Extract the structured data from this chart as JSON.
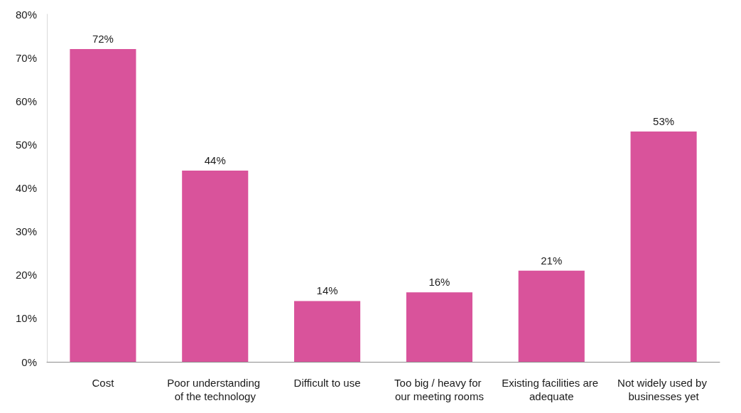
{
  "chart_data": {
    "type": "bar",
    "categories": [
      "Cost",
      "Poor understanding of the technology",
      "Difficult to use",
      "Too big / heavy for our meeting rooms",
      "Existing facilities are adequate",
      "Not widely used by businesses yet"
    ],
    "values": [
      72,
      44,
      14,
      16,
      21,
      53
    ],
    "color": "#d9539b",
    "value_labels": [
      "72%",
      "44%",
      "14%",
      "16%",
      "21%",
      "53%"
    ],
    "ylim": [
      0,
      80
    ],
    "yticks": [
      {
        "value": 0,
        "label": "0%"
      },
      {
        "value": 10,
        "label": "10%"
      },
      {
        "value": 20,
        "label": "20%"
      },
      {
        "value": 30,
        "label": "30%"
      },
      {
        "value": 40,
        "label": "40%"
      },
      {
        "value": 50,
        "label": "50%"
      },
      {
        "value": 60,
        "label": "60%"
      },
      {
        "value": 70,
        "label": "70%"
      },
      {
        "value": 80,
        "label": "80%"
      }
    ]
  }
}
